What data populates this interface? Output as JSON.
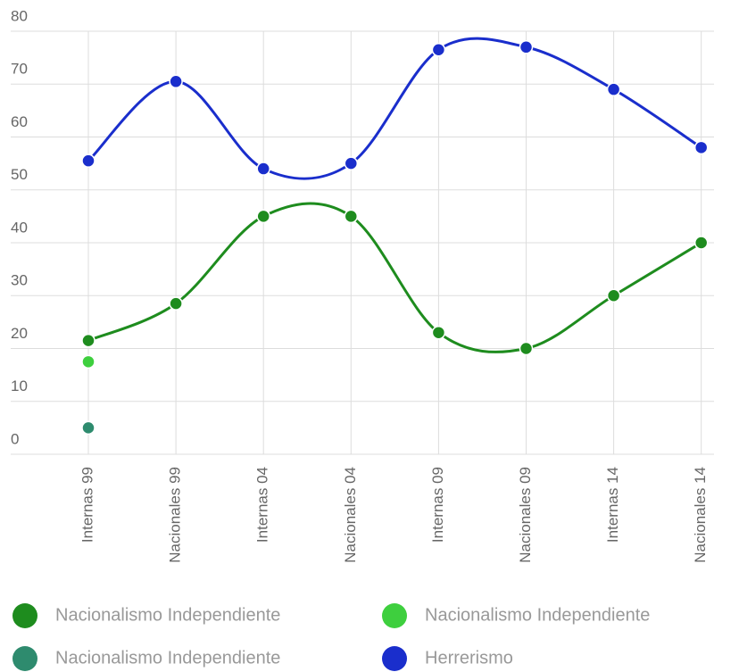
{
  "chart_data": {
    "type": "line",
    "categories": [
      "Internas 99",
      "Nacionales 99",
      "Internas 04",
      "Nacionales 04",
      "Internas 09",
      "Nacionales 09",
      "Internas 14",
      "Nacionales 14"
    ],
    "series": [
      {
        "name": "Nacionalismo Independiente",
        "color": "#1e8c1e",
        "values": [
          21.5,
          28.5,
          45,
          45,
          23,
          20,
          30,
          40
        ]
      },
      {
        "name": "Nacionalismo Independiente",
        "color": "#3ecf3e",
        "values": [
          17.5,
          null,
          null,
          null,
          null,
          null,
          null,
          null
        ]
      },
      {
        "name": "Nacionalismo Independiente",
        "color": "#2e8b6e",
        "values": [
          5,
          null,
          null,
          null,
          null,
          null,
          null,
          null
        ]
      },
      {
        "name": "Herrerismo",
        "color": "#1a2ecc",
        "values": [
          55.5,
          70.5,
          54,
          55,
          76.5,
          77,
          69,
          58
        ]
      }
    ],
    "ylim": [
      0,
      80
    ],
    "yticks": [
      0,
      10,
      20,
      30,
      40,
      50,
      60,
      70,
      80
    ],
    "grid": true
  }
}
